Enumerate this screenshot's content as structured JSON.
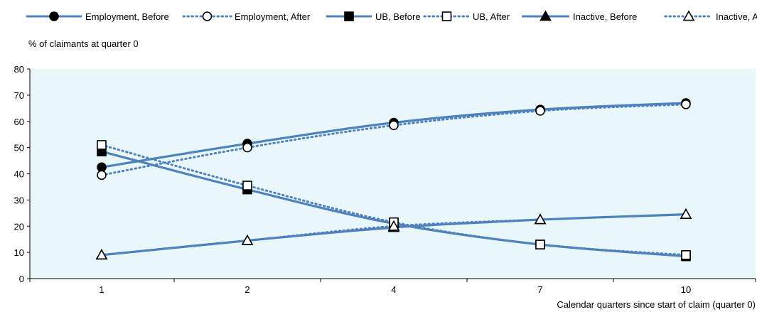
{
  "chart_data": {
    "type": "line",
    "title": "",
    "ylabel": "% of  claimants at quarter 0",
    "xlabel": "Calendar quarters since start of claim (quarter 0)",
    "categories": [
      "1",
      "2",
      "4",
      "7",
      "10"
    ],
    "ylim": [
      0,
      80
    ],
    "yticks": [
      0,
      10,
      20,
      30,
      40,
      50,
      60,
      70,
      80
    ],
    "grid": false,
    "legend_position": "top",
    "colors": {
      "line": "#4f81bd",
      "plot_background": "#eaf7fa"
    },
    "series": [
      {
        "name": "Employment, Before",
        "marker": "circle",
        "filled": true,
        "dashed": false,
        "values": [
          42.5,
          51.5,
          59.5,
          64.5,
          67
        ]
      },
      {
        "name": "Employment, After",
        "marker": "circle",
        "filled": false,
        "dashed": true,
        "values": [
          39.5,
          50,
          58.5,
          64,
          66.5
        ]
      },
      {
        "name": "UB, Before",
        "marker": "square",
        "filled": true,
        "dashed": false,
        "values": [
          48.5,
          34,
          21,
          13,
          8.5
        ]
      },
      {
        "name": "UB, After",
        "marker": "square",
        "filled": false,
        "dashed": true,
        "values": [
          51,
          35.5,
          21.5,
          13,
          9
        ]
      },
      {
        "name": "Inactive, Before",
        "marker": "triangle",
        "filled": true,
        "dashed": false,
        "values": [
          9,
          14.5,
          19.5,
          22.5,
          24.5
        ]
      },
      {
        "name": "Inactive, After",
        "marker": "triangle",
        "filled": false,
        "dashed": true,
        "values": [
          9,
          14.5,
          20,
          22.5,
          24.5
        ]
      }
    ]
  }
}
